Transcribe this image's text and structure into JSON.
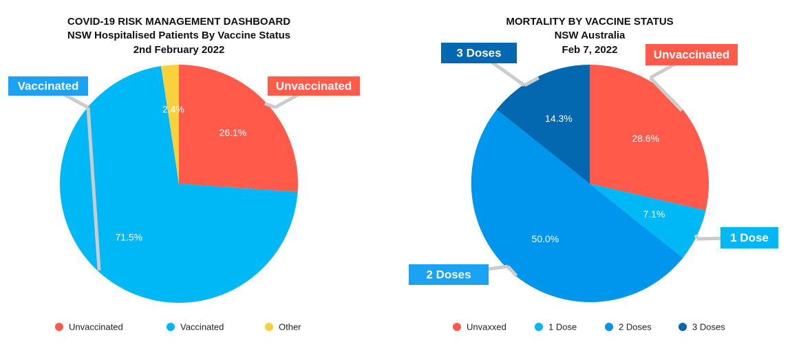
{
  "chart_data": [
    {
      "type": "pie",
      "title": "COVID-19 RISK MANAGEMENT DASHBOARD",
      "subtitle": "NSW Hospitalised Patients By Vaccine Status",
      "date": "2nd February 2022",
      "slices": [
        {
          "label": "Unvaccinated",
          "value": 26.1,
          "display": "26.1%",
          "color": "#FF5A4A"
        },
        {
          "label": "Vaccinated",
          "value": 71.5,
          "display": "71.5%",
          "color": "#00B8F5"
        },
        {
          "label": "Other",
          "value": 2.4,
          "display": "2.4%",
          "color": "#F9D13C"
        }
      ],
      "callouts": [
        {
          "slice": "Unvaccinated",
          "text": "Unvaccinated",
          "color": "#FF5A4A"
        },
        {
          "slice": "Vaccinated",
          "text": "Vaccinated",
          "color": "#1AA3F2"
        }
      ],
      "legend": [
        "Unvaccinated",
        "Vaccinated",
        "Other"
      ],
      "legend_position": "bottom"
    },
    {
      "type": "pie",
      "title": "MORTALITY BY VACCINE STATUS",
      "subtitle": "NSW Australia",
      "date": "Feb 7, 2022",
      "slices": [
        {
          "label": "Unvaxxed",
          "value": 28.6,
          "display": "28.6%",
          "color": "#FF5A4A"
        },
        {
          "label": "1 Dose",
          "value": 7.1,
          "display": "7.1%",
          "color": "#00B8F5"
        },
        {
          "label": "2 Doses",
          "value": 50.0,
          "display": "50.0%",
          "color": "#0096EE"
        },
        {
          "label": "3 Doses",
          "value": 14.3,
          "display": "14.3%",
          "color": "#0468B0"
        }
      ],
      "callouts": [
        {
          "slice": "3 Doses",
          "text": "3 Doses",
          "color": "#0468B0"
        },
        {
          "slice": "Unvaxxed",
          "text": "Unvaccinated",
          "color": "#FF5A4A"
        },
        {
          "slice": "1 Dose",
          "text": "1 Dose",
          "color": "#00B8F5"
        },
        {
          "slice": "2 Doses",
          "text": "2 Doses",
          "color": "#1AA3F2"
        }
      ],
      "legend": [
        "Unvaxxed",
        "1 Dose",
        "2 Doses",
        "3 Doses"
      ],
      "legend_position": "bottom"
    }
  ]
}
